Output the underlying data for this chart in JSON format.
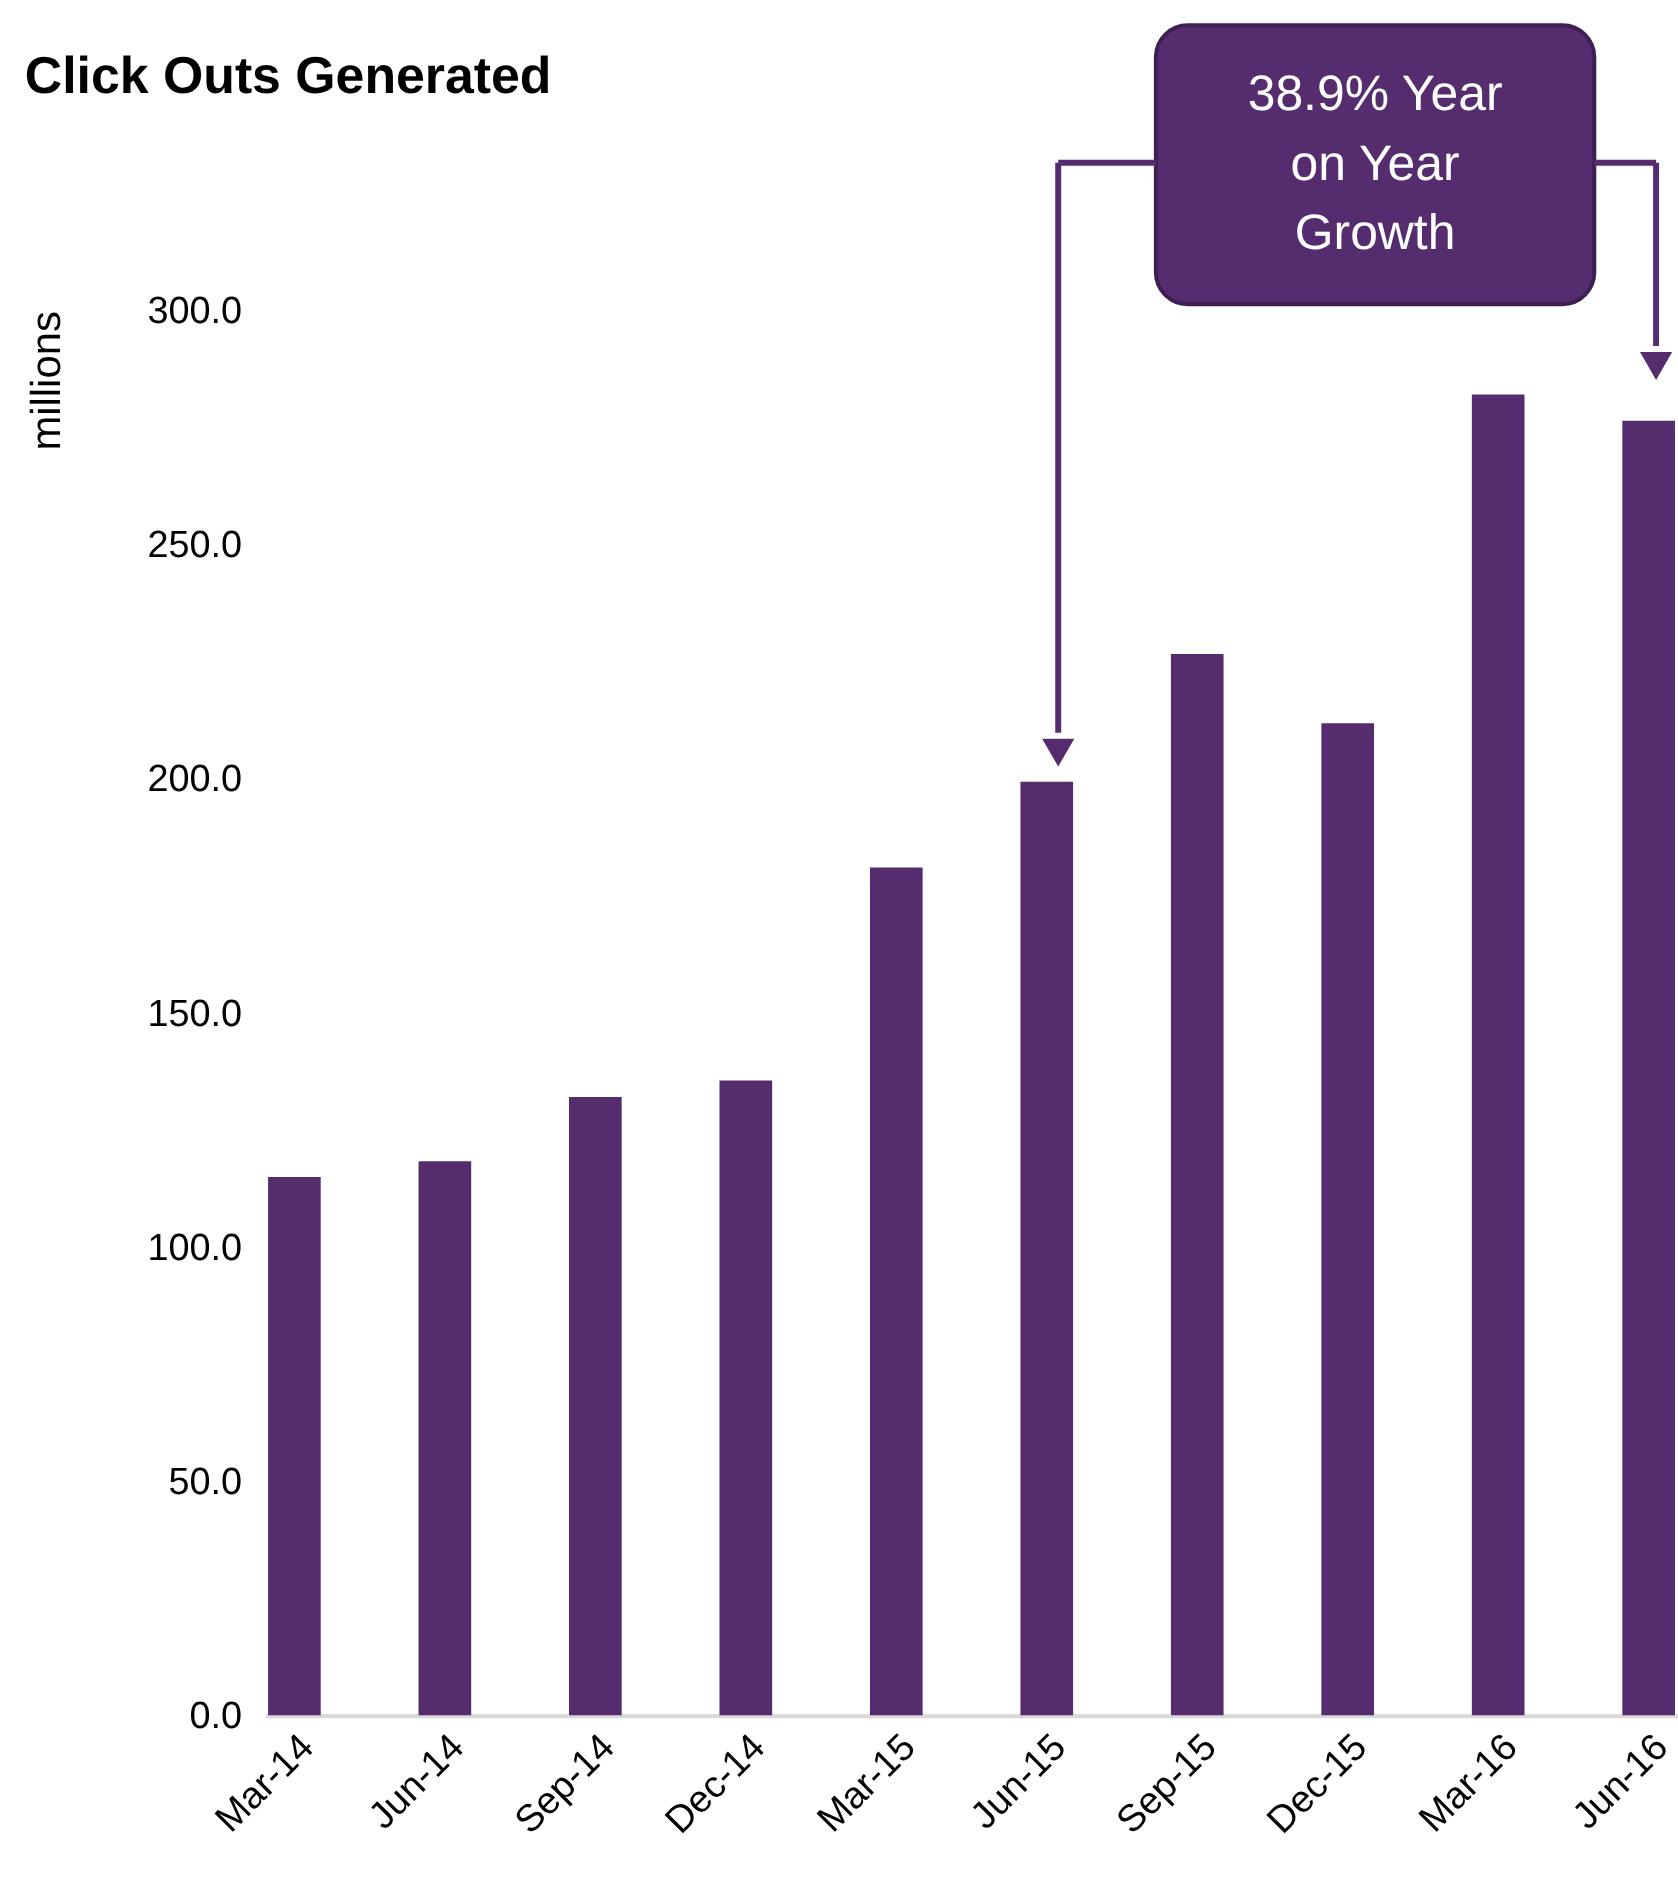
{
  "chart_data": {
    "type": "bar",
    "title": "Click Outs Generated",
    "ylabel": "millions",
    "categories": [
      "Mar-14",
      "Jun-14",
      "Sep-14",
      "Dec-14",
      "Mar-15",
      "Jun-15",
      "Sep-15",
      "Dec-15",
      "Mar-16",
      "Jun-16"
    ],
    "values": [
      114.9,
      118.3,
      132.0,
      135.5,
      181.0,
      199.3,
      226.6,
      211.8,
      282.0,
      276.4
    ],
    "color": "#552d6f",
    "ylim": [
      0,
      300
    ],
    "yticks": [
      {
        "value": 0,
        "label": "0.0"
      },
      {
        "value": 50,
        "label": "50.0"
      },
      {
        "value": 100,
        "label": "100.0"
      },
      {
        "value": 150,
        "label": "150.0"
      },
      {
        "value": 200,
        "label": "200.0"
      },
      {
        "value": 250,
        "label": "250.0"
      },
      {
        "value": 300,
        "label": "300.0"
      }
    ],
    "grid": false,
    "annotations": [
      "38.9% Year\non Year\nGrowth"
    ]
  }
}
